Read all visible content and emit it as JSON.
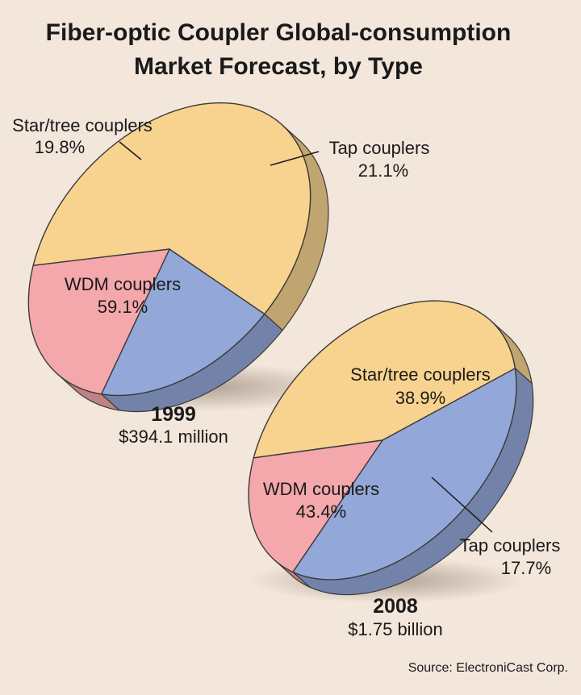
{
  "chart_data": {
    "type": "pie",
    "title_lines": [
      "Fiber-optic Coupler Global-consumption",
      "Market Forecast, by Type"
    ],
    "source": "Source: ElectroniCast Corp.",
    "colors": {
      "WDM couplers": "#f8d38f",
      "Tap couplers": "#f4a8ab",
      "Star/tree couplers": "#93a7d8",
      "background": "#f3e6da"
    },
    "pies": [
      {
        "year": "1999",
        "total": "$394.1 million",
        "slices": [
          {
            "label": "WDM couplers",
            "percent": "59.1%",
            "value": 59.1
          },
          {
            "label": "Star/tree couplers",
            "percent": "19.8%",
            "value": 19.8
          },
          {
            "label": "Tap couplers",
            "percent": "21.1%",
            "value": 21.1
          }
        ]
      },
      {
        "year": "2008",
        "total": "$1.75 billion",
        "slices": [
          {
            "label": "WDM couplers",
            "percent": "43.4%",
            "value": 43.4
          },
          {
            "label": "Star/tree couplers",
            "percent": "38.9%",
            "value": 38.9
          },
          {
            "label": "Tap couplers",
            "percent": "17.7%",
            "value": 17.7
          }
        ]
      }
    ]
  }
}
